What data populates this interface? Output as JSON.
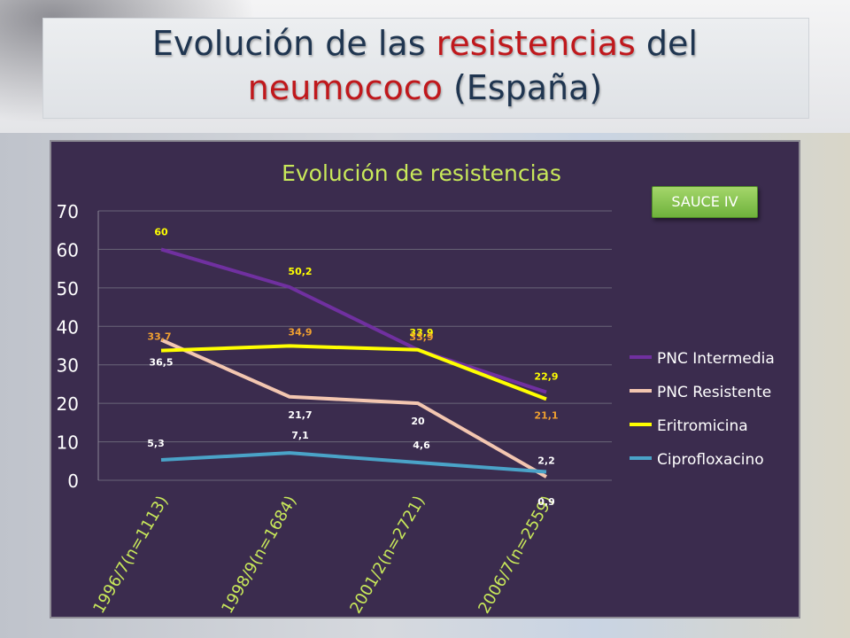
{
  "slide": {
    "title_part1": "Evolución de las ",
    "title_highlight1": "resistencias",
    "title_part2": " del",
    "title_highlight2": "neumococo",
    "title_part3": " (España)",
    "badge": "SAUCE IV"
  },
  "colors": {
    "title": "#1f3550",
    "highlight": "#c0181c",
    "plot_bg": "#3b2c4e",
    "chart_title": "#c8e85a"
  },
  "chart_data": {
    "type": "line",
    "title": "Evolución de resistencias",
    "categories": [
      "1996/7(n=1113)",
      "1998/9(n=1684)",
      "2001/2(n=2721)",
      "2006/7(n=2559)"
    ],
    "ylim": [
      0,
      70
    ],
    "yticks": [
      0,
      10,
      20,
      30,
      40,
      50,
      60,
      70
    ],
    "grid": true,
    "legend_position": "right",
    "series": [
      {
        "name": "PNC Intermedia",
        "color": "#7030a0",
        "values": [
          60,
          50.2,
          33.9,
          22.9
        ],
        "labels": [
          "60",
          "50,2",
          "33,9",
          "22,9"
        ],
        "label_color": "#ffff00"
      },
      {
        "name": "PNC Resistente",
        "color": "#f3c6b0",
        "values": [
          36.5,
          21.7,
          20,
          0.9
        ],
        "labels": [
          "36,5",
          "21,7",
          "20",
          "0,9"
        ],
        "label_color": "#ffffff"
      },
      {
        "name": "Eritromicina",
        "color": "#ffff00",
        "values": [
          33.7,
          34.9,
          33.9,
          21.1
        ],
        "labels": [
          "33,7",
          "34,9",
          "33,9",
          "21,1"
        ],
        "label_color": "#f0a030"
      },
      {
        "name": "Ciprofloxacino",
        "color": "#4aa3c8",
        "values": [
          5.3,
          7.1,
          4.6,
          2.2
        ],
        "labels": [
          "5,3",
          "7,1",
          "4,6",
          "2,2"
        ],
        "label_color": "#ffffff"
      }
    ]
  }
}
